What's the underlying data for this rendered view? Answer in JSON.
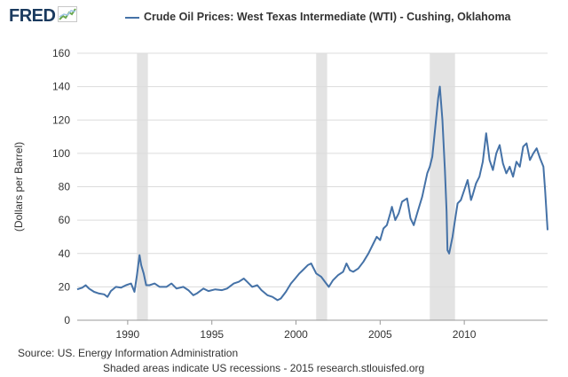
{
  "branding": {
    "logo_text": "FRED",
    "logo_icon": "fred-chart-icon"
  },
  "footer": {
    "source": "Source: US. Energy Information Administration",
    "note": "Shaded areas indicate US recessions - 2015 research.stlouisfed.org"
  },
  "colors": {
    "series": "#4572a7",
    "recession": "#e3e3e3",
    "grid": "#dcdcdc",
    "background": "#ffffff"
  },
  "chart_data": {
    "type": "line",
    "title": "",
    "xlabel": "",
    "ylabel": "(Dollars per Barrel)",
    "xlim": [
      1987.0,
      2014.95
    ],
    "ylim": [
      0,
      160
    ],
    "yticks": [
      0,
      20,
      40,
      60,
      80,
      100,
      120,
      140,
      160
    ],
    "xticks": [
      1990,
      1995,
      2000,
      2005,
      2010
    ],
    "grid": "horizontal",
    "legend_position": "top",
    "recessions": [
      [
        1990.55,
        1991.2
      ],
      [
        2001.2,
        2001.85
      ],
      [
        2007.95,
        2009.45
      ]
    ],
    "series": [
      {
        "name": "Crude Oil Prices: West Texas Intermediate (WTI) - Cushing, Oklahoma",
        "x": [
          1987.0,
          1987.3,
          1987.5,
          1987.7,
          1988.0,
          1988.3,
          1988.6,
          1988.8,
          1989.0,
          1989.3,
          1989.6,
          1989.9,
          1990.2,
          1990.4,
          1990.55,
          1990.7,
          1990.8,
          1990.95,
          1991.1,
          1991.3,
          1991.6,
          1991.9,
          1992.3,
          1992.6,
          1992.9,
          1993.3,
          1993.6,
          1993.9,
          1994.1,
          1994.5,
          1994.8,
          1995.2,
          1995.6,
          1995.9,
          1996.3,
          1996.6,
          1996.9,
          1997.1,
          1997.4,
          1997.7,
          1997.95,
          1998.3,
          1998.6,
          1998.9,
          1999.1,
          1999.4,
          1999.7,
          1999.95,
          2000.2,
          2000.4,
          2000.7,
          2000.9,
          2001.2,
          2001.5,
          2001.8,
          2001.95,
          2002.2,
          2002.5,
          2002.8,
          2003.0,
          2003.2,
          2003.4,
          2003.7,
          2004.0,
          2004.3,
          2004.6,
          2004.8,
          2005.0,
          2005.2,
          2005.4,
          2005.6,
          2005.7,
          2005.9,
          2006.1,
          2006.3,
          2006.6,
          2006.8,
          2007.0,
          2007.2,
          2007.5,
          2007.8,
          2007.95,
          2008.1,
          2008.3,
          2008.45,
          2008.55,
          2008.7,
          2008.85,
          2008.95,
          2009.0,
          2009.1,
          2009.3,
          2009.45,
          2009.6,
          2009.8,
          2010.0,
          2010.2,
          2010.4,
          2010.5,
          2010.7,
          2010.9,
          2011.1,
          2011.3,
          2011.5,
          2011.7,
          2011.9,
          2012.1,
          2012.3,
          2012.5,
          2012.7,
          2012.9,
          2013.1,
          2013.3,
          2013.5,
          2013.7,
          2013.9,
          2014.1,
          2014.3,
          2014.5,
          2014.7,
          2014.8,
          2014.95
        ],
        "y": [
          18.5,
          19.5,
          21,
          19,
          17,
          16,
          15.5,
          14,
          17.5,
          20,
          19.5,
          21,
          22,
          17,
          27,
          39,
          33,
          28,
          21,
          21,
          22,
          20,
          20,
          22,
          19,
          20,
          18,
          15,
          16,
          19,
          17.5,
          18.5,
          18,
          19,
          22,
          23,
          25,
          23,
          20,
          21,
          18,
          15,
          14,
          12,
          13,
          17,
          22,
          25,
          28,
          30,
          33,
          34,
          28,
          26,
          22,
          20,
          24,
          27,
          29,
          34,
          30,
          29,
          31,
          35,
          40,
          46,
          50,
          48,
          55,
          57,
          64,
          68,
          60,
          64,
          71,
          73,
          61,
          57,
          64,
          74,
          88,
          92,
          98,
          118,
          133,
          140,
          120,
          90,
          65,
          42,
          40,
          50,
          60,
          70,
          72,
          78,
          84,
          72,
          75,
          82,
          86,
          95,
          112,
          96,
          90,
          100,
          105,
          94,
          88,
          92,
          86,
          95,
          92,
          104,
          106,
          96,
          100,
          103,
          97,
          92,
          78,
          54
        ]
      }
    ]
  }
}
